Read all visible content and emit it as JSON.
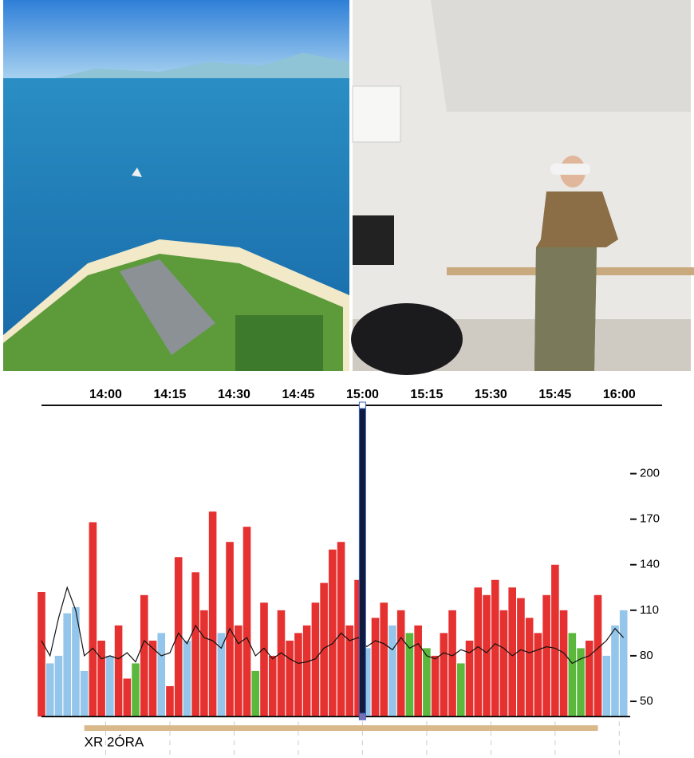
{
  "chart_data": {
    "type": "bar",
    "x": [
      "13:45",
      "13:47",
      "13:49",
      "13:51",
      "13:53",
      "13:55",
      "13:57",
      "13:59",
      "14:01",
      "14:03",
      "14:05",
      "14:07",
      "14:09",
      "14:11",
      "14:13",
      "14:15",
      "14:17",
      "14:19",
      "14:21",
      "14:23",
      "14:25",
      "14:27",
      "14:29",
      "14:31",
      "14:33",
      "14:35",
      "14:37",
      "14:39",
      "14:41",
      "14:43",
      "14:45",
      "14:47",
      "14:49",
      "14:51",
      "14:53",
      "14:55",
      "14:57",
      "14:59",
      "15:01",
      "15:03",
      "15:05",
      "15:07",
      "15:09",
      "15:11",
      "15:13",
      "15:15",
      "15:17",
      "15:19",
      "15:21",
      "15:23",
      "15:25",
      "15:27",
      "15:29",
      "15:31",
      "15:33",
      "15:35",
      "15:37",
      "15:39",
      "15:41",
      "15:43",
      "15:45",
      "15:47",
      "15:49",
      "15:51",
      "15:53",
      "15:55",
      "15:57",
      "15:59",
      "16:01"
    ],
    "values": [
      122,
      75,
      80,
      108,
      112,
      70,
      168,
      90,
      80,
      100,
      65,
      75,
      120,
      90,
      95,
      60,
      145,
      90,
      135,
      110,
      175,
      95,
      155,
      100,
      165,
      70,
      115,
      80,
      110,
      90,
      95,
      100,
      115,
      128,
      150,
      155,
      100,
      130,
      85,
      105,
      115,
      100,
      110,
      95,
      100,
      85,
      80,
      95,
      110,
      75,
      90,
      125,
      120,
      130,
      110,
      125,
      118,
      105,
      95,
      120,
      140,
      110,
      95,
      85,
      90,
      120,
      80,
      100,
      110
    ],
    "colors": [
      "#e5312f",
      "#93c6ea",
      "#93c6ea",
      "#93c6ea",
      "#93c6ea",
      "#93c6ea",
      "#e5312f",
      "#e5312f",
      "#93c6ea",
      "#e5312f",
      "#e5312f",
      "#5cb83c",
      "#e5312f",
      "#e5312f",
      "#93c6ea",
      "#e5312f",
      "#e5312f",
      "#93c6ea",
      "#e5312f",
      "#e5312f",
      "#e5312f",
      "#93c6ea",
      "#e5312f",
      "#e5312f",
      "#e5312f",
      "#5cb83c",
      "#e5312f",
      "#e5312f",
      "#e5312f",
      "#e5312f",
      "#e5312f",
      "#e5312f",
      "#e5312f",
      "#e5312f",
      "#e5312f",
      "#e5312f",
      "#e5312f",
      "#e5312f",
      "#93c6ea",
      "#e5312f",
      "#e5312f",
      "#93c6ea",
      "#e5312f",
      "#5cb83c",
      "#e5312f",
      "#5cb83c",
      "#e5312f",
      "#e5312f",
      "#e5312f",
      "#5cb83c",
      "#e5312f",
      "#e5312f",
      "#e5312f",
      "#e5312f",
      "#e5312f",
      "#e5312f",
      "#e5312f",
      "#e5312f",
      "#e5312f",
      "#e5312f",
      "#e5312f",
      "#e5312f",
      "#5cb83c",
      "#5cb83c",
      "#e5312f",
      "#e5312f",
      "#93c6ea",
      "#93c6ea",
      "#93c6ea"
    ],
    "line": {
      "color": "#111111",
      "values": [
        90,
        80,
        105,
        125,
        110,
        80,
        85,
        78,
        80,
        78,
        82,
        76,
        90,
        85,
        80,
        82,
        95,
        88,
        100,
        92,
        90,
        85,
        98,
        88,
        92,
        80,
        85,
        78,
        82,
        78,
        75,
        76,
        78,
        85,
        88,
        95,
        90,
        92,
        86,
        90,
        88,
        84,
        92,
        85,
        88,
        80,
        78,
        82,
        80,
        84,
        82,
        86,
        82,
        88,
        85,
        80,
        84,
        82,
        84,
        86,
        85,
        82,
        75,
        78,
        80,
        85,
        90,
        98,
        92
      ]
    },
    "xlim": [
      "13:45",
      "16:10"
    ],
    "xticks": [
      "14:00",
      "14:15",
      "14:30",
      "14:45",
      "15:00",
      "15:15",
      "15:30",
      "15:45",
      "16:00"
    ],
    "ylim": [
      40,
      245
    ],
    "yticks": [
      50,
      80,
      110,
      140,
      170,
      200
    ],
    "cursor": "15:00",
    "span": {
      "label": "XR 2ÓRA",
      "x": [
        "13:55",
        "15:55"
      ],
      "color": "#d9b98a"
    }
  }
}
